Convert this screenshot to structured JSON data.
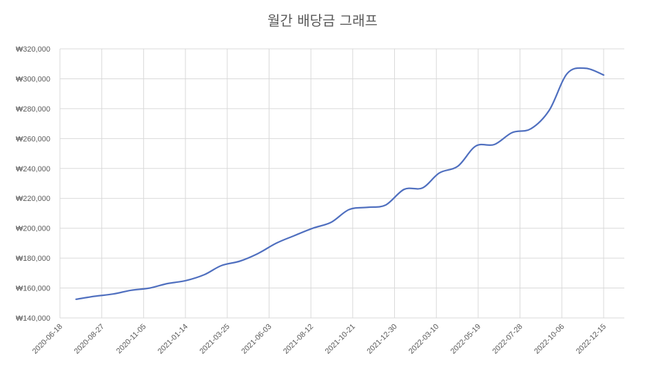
{
  "chart_data": {
    "type": "line",
    "title": "월간 배당금 그래프",
    "xlabel": "",
    "ylabel": "",
    "ylim": [
      140000,
      320000
    ],
    "y_ticks": [
      "₩140,000",
      "₩160,000",
      "₩180,000",
      "₩200,000",
      "₩220,000",
      "₩240,000",
      "₩260,000",
      "₩280,000",
      "₩300,000",
      "₩320,000"
    ],
    "x_ticks": [
      "2020-06-18",
      "2020-08-27",
      "2020-11-05",
      "2021-01-14",
      "2021-03-25",
      "2021-06-03",
      "2021-08-12",
      "2021-10-21",
      "2021-12-30",
      "2022-03-10",
      "2022-05-19",
      "2022-07-28",
      "2022-10-06",
      "2022-12-15"
    ],
    "grid": true,
    "series": [
      {
        "color": "#4f6fbf",
        "x": [
          "2020-07-15",
          "2020-08-15",
          "2020-09-15",
          "2020-10-15",
          "2020-11-15",
          "2020-12-15",
          "2021-01-15",
          "2021-02-15",
          "2021-03-15",
          "2021-04-15",
          "2021-05-15",
          "2021-06-15",
          "2021-07-15",
          "2021-08-15",
          "2021-09-15",
          "2021-10-15",
          "2021-11-15",
          "2021-12-15",
          "2022-01-15",
          "2022-02-15",
          "2022-03-15",
          "2022-04-15",
          "2022-05-15",
          "2022-06-15",
          "2022-07-15",
          "2022-08-15",
          "2022-09-15",
          "2022-10-15",
          "2022-11-15",
          "2022-12-15"
        ],
        "values": [
          152500,
          154500,
          156000,
          158500,
          160000,
          163000,
          165000,
          169000,
          175000,
          178000,
          183000,
          190000,
          195000,
          200000,
          204000,
          212500,
          214000,
          215500,
          226000,
          227000,
          237000,
          241500,
          255000,
          256000,
          264000,
          266500,
          279000,
          303500,
          307000,
          302500
        ]
      }
    ]
  }
}
